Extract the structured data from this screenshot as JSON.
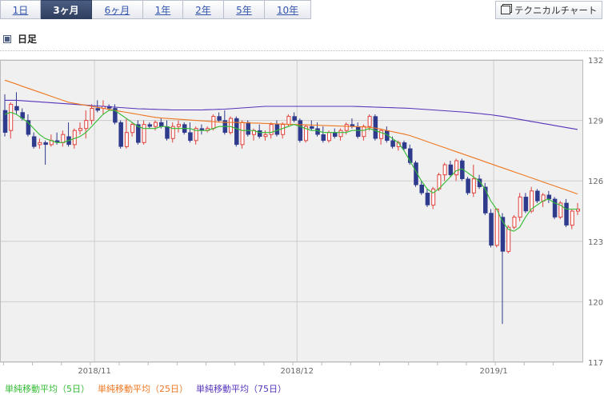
{
  "tabs": [
    {
      "label": "1日",
      "active": false
    },
    {
      "label": "3ヶ月",
      "active": true
    },
    {
      "label": "6ヶ月",
      "active": false
    },
    {
      "label": "1年",
      "active": false
    },
    {
      "label": "2年",
      "active": false
    },
    {
      "label": "5年",
      "active": false
    },
    {
      "label": "10年",
      "active": false
    }
  ],
  "technical_button": {
    "label": "テクニカルチャート",
    "icon": "window-icon"
  },
  "section_title": "日足",
  "colors": {
    "up": "#e0403a",
    "down": "#2e3a8c",
    "ma5": "#33bb33",
    "ma25": "#ee7722",
    "ma75": "#5533bb",
    "plot_bg": "#f0f0f0",
    "grid": "#cccccc"
  },
  "chart_data": {
    "type": "candlestick",
    "y_ticks": [
      "132",
      "129",
      "126",
      "123",
      "120",
      "117"
    ],
    "ylim": [
      117,
      132
    ],
    "x_ticks": [
      {
        "label": "2018/11",
        "index": 16
      },
      {
        "label": "2018/12",
        "index": 51
      },
      {
        "label": "2019/1",
        "index": 85
      }
    ],
    "grid": true,
    "candles": [
      [
        129.5,
        130.3,
        128.2,
        128.4
      ],
      [
        128.5,
        129.9,
        128.1,
        129.8
      ],
      [
        129.7,
        130.4,
        129.3,
        129.5
      ],
      [
        129.4,
        129.6,
        129.0,
        129.1
      ],
      [
        129.0,
        129.3,
        128.2,
        128.3
      ],
      [
        128.2,
        128.4,
        127.6,
        127.7
      ],
      [
        127.8,
        128.1,
        127.6,
        127.9
      ],
      [
        127.9,
        128.0,
        126.8,
        127.8
      ],
      [
        127.8,
        128.3,
        127.7,
        128.0
      ],
      [
        128.0,
        128.4,
        127.8,
        127.9
      ],
      [
        127.9,
        128.5,
        127.7,
        128.3
      ],
      [
        128.2,
        128.9,
        127.7,
        127.8
      ],
      [
        127.8,
        128.6,
        127.6,
        128.5
      ],
      [
        128.5,
        128.9,
        128.3,
        128.6
      ],
      [
        128.6,
        129.5,
        128.1,
        129.0
      ],
      [
        129.0,
        129.8,
        128.8,
        129.6
      ],
      [
        129.6,
        130.0,
        129.4,
        129.5
      ],
      [
        129.6,
        130.0,
        129.3,
        129.7
      ],
      [
        129.7,
        129.8,
        129.5,
        129.6
      ],
      [
        129.6,
        129.8,
        128.8,
        128.9
      ],
      [
        128.9,
        129.0,
        127.6,
        127.7
      ],
      [
        127.7,
        129.1,
        127.6,
        128.4
      ],
      [
        128.4,
        128.9,
        128.2,
        128.8
      ],
      [
        128.8,
        129.0,
        127.8,
        127.9
      ],
      [
        127.9,
        129.0,
        127.8,
        128.8
      ],
      [
        128.8,
        128.9,
        128.6,
        128.7
      ],
      [
        128.7,
        129.0,
        128.5,
        128.9
      ],
      [
        128.9,
        129.1,
        128.6,
        128.7
      ],
      [
        128.7,
        129.0,
        128.0,
        128.1
      ],
      [
        128.1,
        128.9,
        127.9,
        128.7
      ],
      [
        128.7,
        129.0,
        128.4,
        128.8
      ],
      [
        128.8,
        128.9,
        128.3,
        128.4
      ],
      [
        128.4,
        128.9,
        127.9,
        128.0
      ],
      [
        128.0,
        128.7,
        127.8,
        128.6
      ],
      [
        128.6,
        128.8,
        128.3,
        128.5
      ],
      [
        128.5,
        128.7,
        128.4,
        128.6
      ],
      [
        128.6,
        129.3,
        128.5,
        129.2
      ],
      [
        129.2,
        129.4,
        128.9,
        129.0
      ],
      [
        129.0,
        129.5,
        128.3,
        128.4
      ],
      [
        128.4,
        129.2,
        128.3,
        129.1
      ],
      [
        129.1,
        129.2,
        127.7,
        127.8
      ],
      [
        127.8,
        129.0,
        127.6,
        128.9
      ],
      [
        128.9,
        129.0,
        128.2,
        128.3
      ],
      [
        128.3,
        128.6,
        128.0,
        128.5
      ],
      [
        128.5,
        128.8,
        128.1,
        128.2
      ],
      [
        128.2,
        128.5,
        128.0,
        128.3
      ],
      [
        128.3,
        128.9,
        128.1,
        128.8
      ],
      [
        128.8,
        129.0,
        128.2,
        128.3
      ],
      [
        128.3,
        128.9,
        128.1,
        128.8
      ],
      [
        128.8,
        129.3,
        128.7,
        129.2
      ],
      [
        129.2,
        129.4,
        128.9,
        129.0
      ],
      [
        129.0,
        129.1,
        127.9,
        128.0
      ],
      [
        128.0,
        128.8,
        127.9,
        128.7
      ],
      [
        128.7,
        129.0,
        128.5,
        128.6
      ],
      [
        128.6,
        128.9,
        128.2,
        128.3
      ],
      [
        128.3,
        128.7,
        127.9,
        128.0
      ],
      [
        128.0,
        128.5,
        127.9,
        128.4
      ],
      [
        128.4,
        128.6,
        128.1,
        128.2
      ],
      [
        128.2,
        128.6,
        128.0,
        128.5
      ],
      [
        128.5,
        128.9,
        128.3,
        128.8
      ],
      [
        128.8,
        129.1,
        128.6,
        128.7
      ],
      [
        128.7,
        128.9,
        128.1,
        128.2
      ],
      [
        128.2,
        128.8,
        128.0,
        128.7
      ],
      [
        128.7,
        129.3,
        128.5,
        129.2
      ],
      [
        129.2,
        129.3,
        128.0,
        128.1
      ],
      [
        128.1,
        128.6,
        127.8,
        128.5
      ],
      [
        128.5,
        128.7,
        127.9,
        128.0
      ],
      [
        128.0,
        128.2,
        127.6,
        127.7
      ],
      [
        127.7,
        128.0,
        127.5,
        127.9
      ],
      [
        127.9,
        128.0,
        127.5,
        127.6
      ],
      [
        127.6,
        127.8,
        126.8,
        126.9
      ],
      [
        126.9,
        127.0,
        125.7,
        125.8
      ],
      [
        125.8,
        126.0,
        125.3,
        125.4
      ],
      [
        125.4,
        125.6,
        124.7,
        124.8
      ],
      [
        124.8,
        125.7,
        124.6,
        125.6
      ],
      [
        125.6,
        126.4,
        125.5,
        126.3
      ],
      [
        126.3,
        126.9,
        126.0,
        126.8
      ],
      [
        126.8,
        127.0,
        126.2,
        126.3
      ],
      [
        126.3,
        127.1,
        126.0,
        127.0
      ],
      [
        127.0,
        127.1,
        126.0,
        126.1
      ],
      [
        126.1,
        126.2,
        125.3,
        125.4
      ],
      [
        125.4,
        126.8,
        125.2,
        126.1
      ],
      [
        126.1,
        126.3,
        125.6,
        125.7
      ],
      [
        125.7,
        125.9,
        124.3,
        124.4
      ],
      [
        124.4,
        124.6,
        122.7,
        122.8
      ],
      [
        122.8,
        124.6,
        122.7,
        124.6
      ],
      [
        124.2,
        124.4,
        118.9,
        122.5
      ],
      [
        122.5,
        123.8,
        122.4,
        123.7
      ],
      [
        123.7,
        124.3,
        123.6,
        124.2
      ],
      [
        124.2,
        125.4,
        124.0,
        125.2
      ],
      [
        125.2,
        125.4,
        124.4,
        124.5
      ],
      [
        124.5,
        125.7,
        124.4,
        125.5
      ],
      [
        125.5,
        125.6,
        124.9,
        125.0
      ],
      [
        125.0,
        125.4,
        124.7,
        125.3
      ],
      [
        125.3,
        125.5,
        124.9,
        125.1
      ],
      [
        125.1,
        125.2,
        124.1,
        124.2
      ],
      [
        124.2,
        125.0,
        124.1,
        124.9
      ],
      [
        124.9,
        125.1,
        123.7,
        123.8
      ],
      [
        123.8,
        124.6,
        123.6,
        124.5
      ],
      [
        124.5,
        124.9,
        124.3,
        124.6
      ]
    ],
    "ma5": [
      129.3,
      129.4,
      129.3,
      129.1,
      128.9,
      128.6,
      128.3,
      128.1,
      128.0,
      127.9,
      127.9,
      128.0,
      128.1,
      128.2,
      128.4,
      128.7,
      129.0,
      129.3,
      129.5,
      129.5,
      129.3,
      129.1,
      128.9,
      128.7,
      128.6,
      128.6,
      128.6,
      128.7,
      128.7,
      128.6,
      128.6,
      128.6,
      128.6,
      128.5,
      128.5,
      128.5,
      128.6,
      128.7,
      128.7,
      128.7,
      128.6,
      128.5,
      128.5,
      128.5,
      128.4,
      128.4,
      128.4,
      128.5,
      128.6,
      128.7,
      128.8,
      128.7,
      128.6,
      128.5,
      128.5,
      128.4,
      128.4,
      128.4,
      128.4,
      128.4,
      128.5,
      128.5,
      128.5,
      128.6,
      128.5,
      128.4,
      128.3,
      128.1,
      127.9,
      127.5,
      127.0,
      126.5,
      126.0,
      125.6,
      125.4,
      125.6,
      125.9,
      126.2,
      126.5,
      126.6,
      126.4,
      126.2,
      126.0,
      125.6,
      125.0,
      124.6,
      124.0,
      123.6,
      123.5,
      123.7,
      124.2,
      124.6,
      124.8,
      125.0,
      125.1,
      124.9,
      124.8,
      124.6,
      124.6,
      124.6
    ],
    "ma25": [
      131.0,
      130.9,
      130.8,
      130.7,
      130.6,
      130.5,
      130.4,
      130.3,
      130.2,
      130.1,
      130.0,
      129.9,
      129.85,
      129.8,
      129.75,
      129.7,
      129.65,
      129.6,
      129.55,
      129.5,
      129.45,
      129.4,
      129.35,
      129.3,
      129.25,
      129.2,
      129.15,
      129.12,
      129.1,
      129.08,
      129.06,
      129.04,
      129.02,
      129.0,
      128.98,
      128.96,
      128.94,
      128.92,
      128.9,
      128.9,
      128.9,
      128.89,
      128.88,
      128.87,
      128.86,
      128.85,
      128.84,
      128.83,
      128.82,
      128.81,
      128.8,
      128.79,
      128.78,
      128.77,
      128.76,
      128.75,
      128.74,
      128.73,
      128.72,
      128.71,
      128.7,
      128.69,
      128.68,
      128.66,
      128.62,
      128.57,
      128.5,
      128.44,
      128.38,
      128.32,
      128.25,
      128.15,
      128.05,
      127.95,
      127.85,
      127.75,
      127.65,
      127.55,
      127.45,
      127.35,
      127.25,
      127.15,
      127.05,
      126.95,
      126.85,
      126.75,
      126.65,
      126.55,
      126.45,
      126.35,
      126.25,
      126.15,
      126.05,
      125.95,
      125.85,
      125.75,
      125.65,
      125.55,
      125.45,
      125.35
    ],
    "ma75": [
      130.0,
      130.0,
      130.0,
      129.98,
      129.96,
      129.94,
      129.92,
      129.9,
      129.88,
      129.86,
      129.84,
      129.82,
      129.8,
      129.78,
      129.76,
      129.74,
      129.72,
      129.7,
      129.68,
      129.66,
      129.64,
      129.62,
      129.6,
      129.58,
      129.57,
      129.56,
      129.55,
      129.54,
      129.53,
      129.52,
      129.52,
      129.52,
      129.52,
      129.52,
      129.52,
      129.53,
      129.54,
      129.55,
      129.56,
      129.58,
      129.6,
      129.62,
      129.64,
      129.66,
      129.68,
      129.7,
      129.7,
      129.7,
      129.7,
      129.7,
      129.7,
      129.7,
      129.7,
      129.7,
      129.7,
      129.7,
      129.7,
      129.7,
      129.7,
      129.7,
      129.7,
      129.69,
      129.68,
      129.67,
      129.66,
      129.65,
      129.64,
      129.63,
      129.62,
      129.61,
      129.6,
      129.58,
      129.56,
      129.54,
      129.52,
      129.5,
      129.48,
      129.46,
      129.44,
      129.42,
      129.4,
      129.37,
      129.34,
      129.31,
      129.28,
      129.24,
      129.2,
      129.15,
      129.1,
      129.05,
      129.0,
      128.95,
      128.9,
      128.85,
      128.8,
      128.75,
      128.7,
      128.65,
      128.6,
      128.55
    ]
  },
  "legend": [
    {
      "label": "単純移動平均（5日）",
      "color": "#33bb33"
    },
    {
      "label": "単純移動平均（25日）",
      "color": "#ee7722"
    },
    {
      "label": "単純移動平均（75日）",
      "color": "#5533bb"
    }
  ]
}
